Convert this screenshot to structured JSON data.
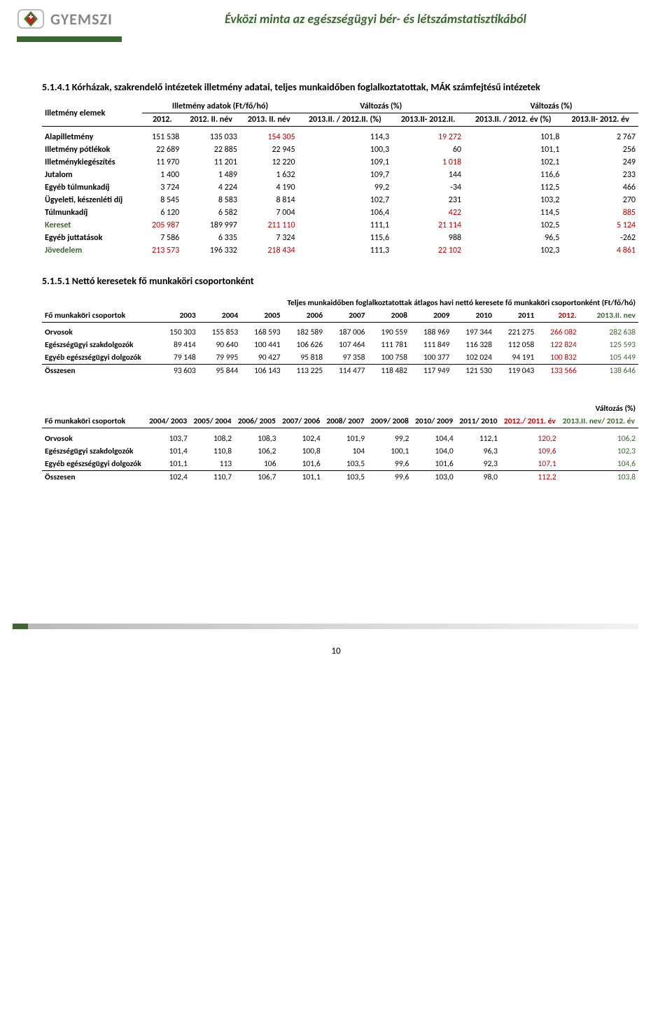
{
  "header": {
    "logo_text": "GYEMSZI",
    "doc_title": "Évközi minta az egészségügyi bér- és létszámstatisztikából"
  },
  "colors": {
    "accent_green": "#3a682e",
    "highlight_red": "#c00000",
    "highlight_green": "#3a682e",
    "logo_red": "#c02418",
    "logo_green": "#2e8b2e",
    "logo_text": "#888888"
  },
  "section1": {
    "title": "5.1.4.1 Kórházak, szakrendelő intézetek illetmény adatai, teljes munkaidőben foglalkoztatottak, MÁK számfejtésű intézetek",
    "col_group1": "Illetmény adatok (Ft/fő/hó)",
    "col_group2": "Változás (%)",
    "col_group3": "Változás (%)",
    "row_header_label": "Illetmény elemek",
    "cols": [
      "2012.",
      "2012. II. név",
      "2013. II. név",
      "2013.II. / 2012.II. (%)",
      "2013.II- 2012.II.",
      "2013.II. / 2012. év (%)",
      "2013.II- 2012. év"
    ],
    "rows": [
      {
        "label": "Alapilletmény",
        "cells": [
          "151 538",
          "135 033",
          "154 305",
          "114,3",
          "19 272",
          "101,8",
          "2 767"
        ],
        "red_cols": [
          2,
          4
        ],
        "green_cols": []
      },
      {
        "label": "Illetmény pótlékok",
        "cells": [
          "22 689",
          "22 885",
          "22 945",
          "100,3",
          "60",
          "101,1",
          "256"
        ],
        "red_cols": [],
        "green_cols": []
      },
      {
        "label": "Illetménykiegészítés",
        "cells": [
          "11 970",
          "11 201",
          "12 220",
          "109,1",
          "1 018",
          "102,1",
          "249"
        ],
        "red_cols": [
          4
        ],
        "green_cols": []
      },
      {
        "label": "Jutalom",
        "cells": [
          "1 400",
          "1 489",
          "1 632",
          "109,7",
          "144",
          "116,6",
          "233"
        ],
        "red_cols": [],
        "green_cols": []
      },
      {
        "label": "Egyéb túlmunkadíj",
        "cells": [
          "3 724",
          "4 224",
          "4 190",
          "99,2",
          "-34",
          "112,5",
          "466"
        ],
        "red_cols": [],
        "green_cols": []
      },
      {
        "label": "Ügyeleti, készenléti díj",
        "cells": [
          "8 545",
          "8 583",
          "8 814",
          "102,7",
          "231",
          "103,2",
          "270"
        ],
        "red_cols": [],
        "green_cols": []
      },
      {
        "label": "Túlmunkadíj",
        "cells": [
          "6 120",
          "6 582",
          "7 004",
          "106,4",
          "422",
          "114,5",
          "885"
        ],
        "red_cols": [
          4,
          6
        ],
        "green_cols": []
      },
      {
        "label": "Kereset",
        "cells": [
          "205 987",
          "189 997",
          "211 110",
          "111,1",
          "21 114",
          "102,5",
          "5 124"
        ],
        "red_cols": [
          0,
          2,
          4,
          6
        ],
        "green_cols": [],
        "label_green": true,
        "all_bold": false
      },
      {
        "label": "Egyéb juttatások",
        "cells": [
          "7 586",
          "6 335",
          "7 324",
          "115,6",
          "988",
          "96,5",
          "-262"
        ],
        "red_cols": [],
        "green_cols": []
      },
      {
        "label": "Jövedelem",
        "cells": [
          "213 573",
          "196 332",
          "218 434",
          "111,3",
          "22 102",
          "102,3",
          "4 861"
        ],
        "red_cols": [
          0,
          2,
          4,
          6
        ],
        "green_cols": [],
        "label_green": true
      }
    ]
  },
  "section2": {
    "title": "5.1.5.1 Nettó keresetek fő munkaköri csoportonként",
    "caption": "Teljes munkaidőben foglalkoztatottak átlagos havi nettó keresete fő munkaköri csoportonként (Ft/fő/hó)",
    "row_header_label": "Fő munkaköri csoportok",
    "cols": [
      "2003",
      "2004",
      "2005",
      "2006",
      "2007",
      "2008",
      "2009",
      "2010",
      "2011",
      "2012.",
      "2013.II. nev"
    ],
    "rows": [
      {
        "label": "Orvosok",
        "cells": [
          "150 303",
          "155 853",
          "168 593",
          "182 589",
          "187 006",
          "190 559",
          "188 969",
          "197 344",
          "221 275",
          "266 082",
          "282 638"
        ]
      },
      {
        "label": "Egészségügyi szakdolgozók",
        "cells": [
          "89 414",
          "90 640",
          "100 441",
          "106 626",
          "107 464",
          "111 781",
          "111 849",
          "116 328",
          "112 058",
          "122 824",
          "125 593"
        ]
      },
      {
        "label": "Egyéb egészségügyi dolgozók",
        "cells": [
          "79 148",
          "79 995",
          "90 427",
          "95 818",
          "97 358",
          "100 758",
          "100 377",
          "102 024",
          "94 191",
          "100 832",
          "105 449"
        ]
      },
      {
        "label": "Összesen",
        "cells": [
          "93 603",
          "95 844",
          "106 143",
          "113 225",
          "114 477",
          "118 482",
          "117 949",
          "121 530",
          "119 043",
          "133 566",
          "138 646"
        ],
        "top_border": true
      }
    ],
    "red_col_index": 9,
    "green_col_index": 10
  },
  "section3": {
    "caption": "Változás (%)",
    "row_header_label": "Fő munkaköri csoportok",
    "cols": [
      "2004/ 2003",
      "2005/ 2004",
      "2006/ 2005",
      "2007/ 2006",
      "2008/ 2007",
      "2009/ 2008",
      "2010/ 2009",
      "2011/ 2010",
      "2012./ 2011. év",
      "2013.II. nev/ 2012. év"
    ],
    "rows": [
      {
        "label": "Orvosok",
        "cells": [
          "103,7",
          "108,2",
          "108,3",
          "102,4",
          "101,9",
          "99,2",
          "104,4",
          "112,1",
          "120,2",
          "106,2"
        ]
      },
      {
        "label": "Egészségügyi szakdolgozók",
        "cells": [
          "101,4",
          "110,8",
          "106,2",
          "100,8",
          "104",
          "100,1",
          "104,0",
          "96,3",
          "109,6",
          "102,3"
        ]
      },
      {
        "label": "Egyéb egészségügyi dolgozók",
        "cells": [
          "101,1",
          "113",
          "106",
          "101,6",
          "103,5",
          "99,6",
          "101,6",
          "92,3",
          "107,1",
          "104,6"
        ]
      },
      {
        "label": "Összesen",
        "cells": [
          "102,4",
          "110,7",
          "106,7",
          "101,1",
          "103,5",
          "99,6",
          "103,0",
          "98,0",
          "112,2",
          "103,8"
        ],
        "top_border": true
      }
    ],
    "red_col_index": 8,
    "green_col_index": 9
  },
  "page_number": "10"
}
